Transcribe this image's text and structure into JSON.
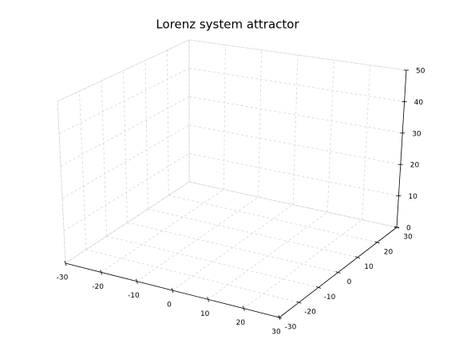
{
  "chart_data": {
    "type": "line3d",
    "title": "Lorenz system attractor",
    "xlim": [
      -30,
      30
    ],
    "ylim": [
      -30,
      30
    ],
    "zlim": [
      0,
      50
    ],
    "xticks": [
      -30,
      -20,
      -10,
      0,
      10,
      20,
      30
    ],
    "yticks": [
      -30,
      -20,
      -10,
      0,
      10,
      20,
      30
    ],
    "zticks": [
      0,
      10,
      20,
      30,
      40,
      50
    ],
    "grid": true
  }
}
